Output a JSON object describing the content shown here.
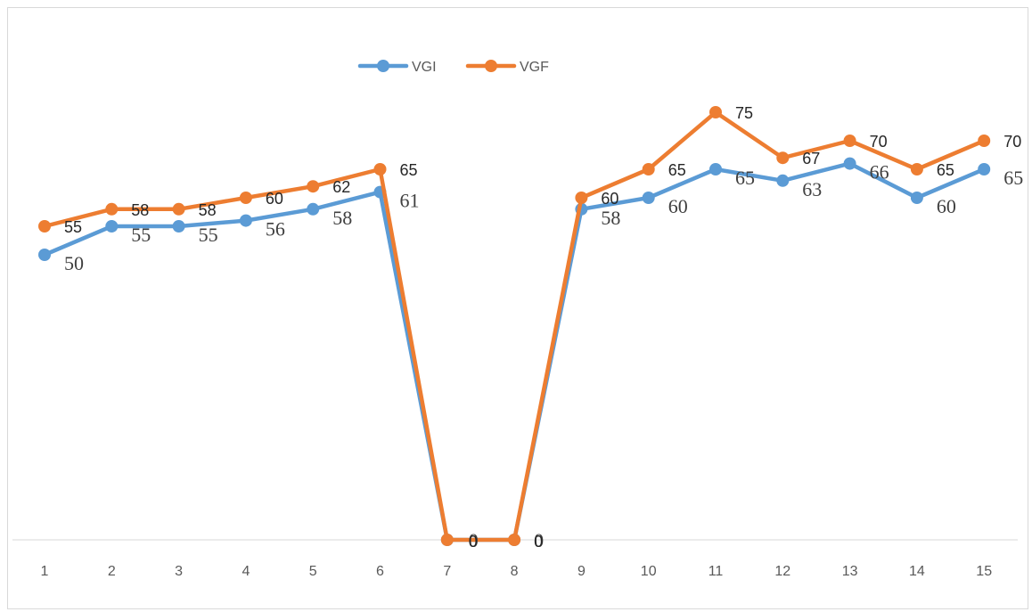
{
  "chart_data": {
    "type": "line",
    "categories": [
      "1",
      "2",
      "3",
      "4",
      "5",
      "6",
      "7",
      "8",
      "9",
      "10",
      "11",
      "12",
      "13",
      "14",
      "15"
    ],
    "series": [
      {
        "name": "VGI",
        "color": "#5b9bd5",
        "values": [
          50,
          55,
          55,
          56,
          58,
          61,
          0,
          0,
          58,
          60,
          65,
          63,
          66,
          60,
          65
        ]
      },
      {
        "name": "VGF",
        "color": "#ed7d31",
        "values": [
          55,
          58,
          58,
          60,
          62,
          65,
          0,
          0,
          60,
          65,
          75,
          67,
          70,
          65,
          70
        ]
      }
    ],
    "title": "",
    "xlabel": "",
    "ylabel": "",
    "ylim": [
      0,
      80
    ],
    "grid": false,
    "legend_position": "top"
  }
}
